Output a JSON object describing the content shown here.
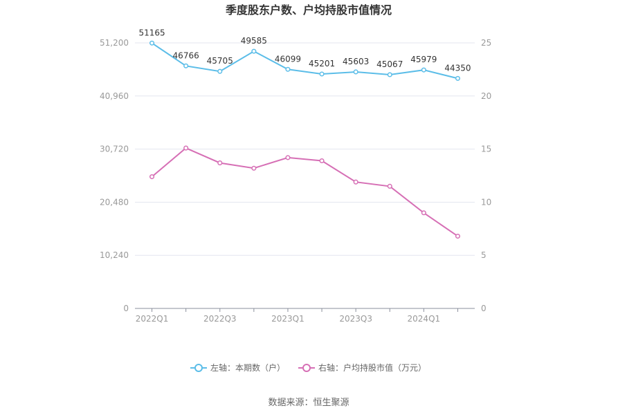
{
  "chart_data": {
    "type": "line",
    "title": "季度股东户数、户均持股市值情况",
    "categories": [
      "2022Q1",
      "2022Q2",
      "2022Q3",
      "2022Q4",
      "2023Q1",
      "2023Q2",
      "2023Q3",
      "2023Q4",
      "2024Q1",
      "2024Q2"
    ],
    "x_tick_labels": [
      "2022Q1",
      "2022Q3",
      "2023Q1",
      "2023Q3",
      "2024Q1"
    ],
    "left_axis": {
      "ylim": [
        0,
        51200
      ],
      "ticks": [
        "0",
        "10,240",
        "20,480",
        "30,720",
        "40,960",
        "51,200"
      ]
    },
    "right_axis": {
      "ylim": [
        0,
        25
      ],
      "ticks": [
        "0",
        "5",
        "10",
        "15",
        "20",
        "25"
      ]
    },
    "series": [
      {
        "name": "左轴：本期数（户）",
        "axis": "left",
        "color": "#5bbde8",
        "values": [
          51165,
          46766,
          45705,
          49585,
          46099,
          45201,
          45603,
          45067,
          45979,
          44350
        ],
        "labels": [
          "51165",
          "46766",
          "45705",
          "49585",
          "46099",
          "45201",
          "45603",
          "45067",
          "45979",
          "44350"
        ]
      },
      {
        "name": "右轴：户均持股市值（万元）",
        "axis": "right",
        "color": "#d66fb5",
        "values": [
          12.4,
          15.1,
          13.7,
          13.2,
          14.2,
          13.9,
          11.9,
          11.5,
          9.0,
          6.8
        ]
      }
    ],
    "grid": true,
    "legend_position": "bottom"
  },
  "source": "数据来源：恒生聚源"
}
